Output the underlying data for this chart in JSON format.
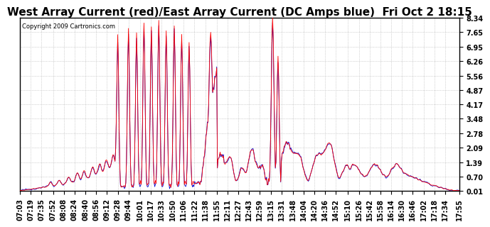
{
  "title": "West Array Current (red)/East Array Current (DC Amps blue)  Fri Oct 2 18:15",
  "copyright": "Copyright 2009 Cartronics.com",
  "yticks": [
    0.01,
    0.7,
    1.39,
    2.09,
    2.78,
    3.48,
    4.17,
    4.87,
    5.56,
    6.26,
    6.95,
    7.65,
    8.34
  ],
  "ymin": 0.01,
  "ymax": 8.34,
  "xtick_labels": [
    "07:03",
    "07:19",
    "07:35",
    "07:52",
    "08:08",
    "08:24",
    "08:40",
    "08:56",
    "09:12",
    "09:28",
    "09:44",
    "10:01",
    "10:17",
    "10:33",
    "10:50",
    "11:06",
    "11:22",
    "11:38",
    "11:55",
    "12:11",
    "12:27",
    "12:43",
    "12:59",
    "13:15",
    "13:31",
    "13:48",
    "14:04",
    "14:20",
    "14:36",
    "14:52",
    "15:10",
    "15:26",
    "15:42",
    "15:58",
    "16:14",
    "16:30",
    "16:46",
    "17:02",
    "17:18",
    "17:34",
    "17:55"
  ],
  "bg_color": "#ffffff",
  "plot_bg_color": "#ffffff",
  "grid_color": "#b0b0b0",
  "line_color_red": "#ff0000",
  "line_color_blue": "#0000cc",
  "title_fontsize": 11,
  "tick_fontsize": 7.0,
  "border_color": "#000000"
}
